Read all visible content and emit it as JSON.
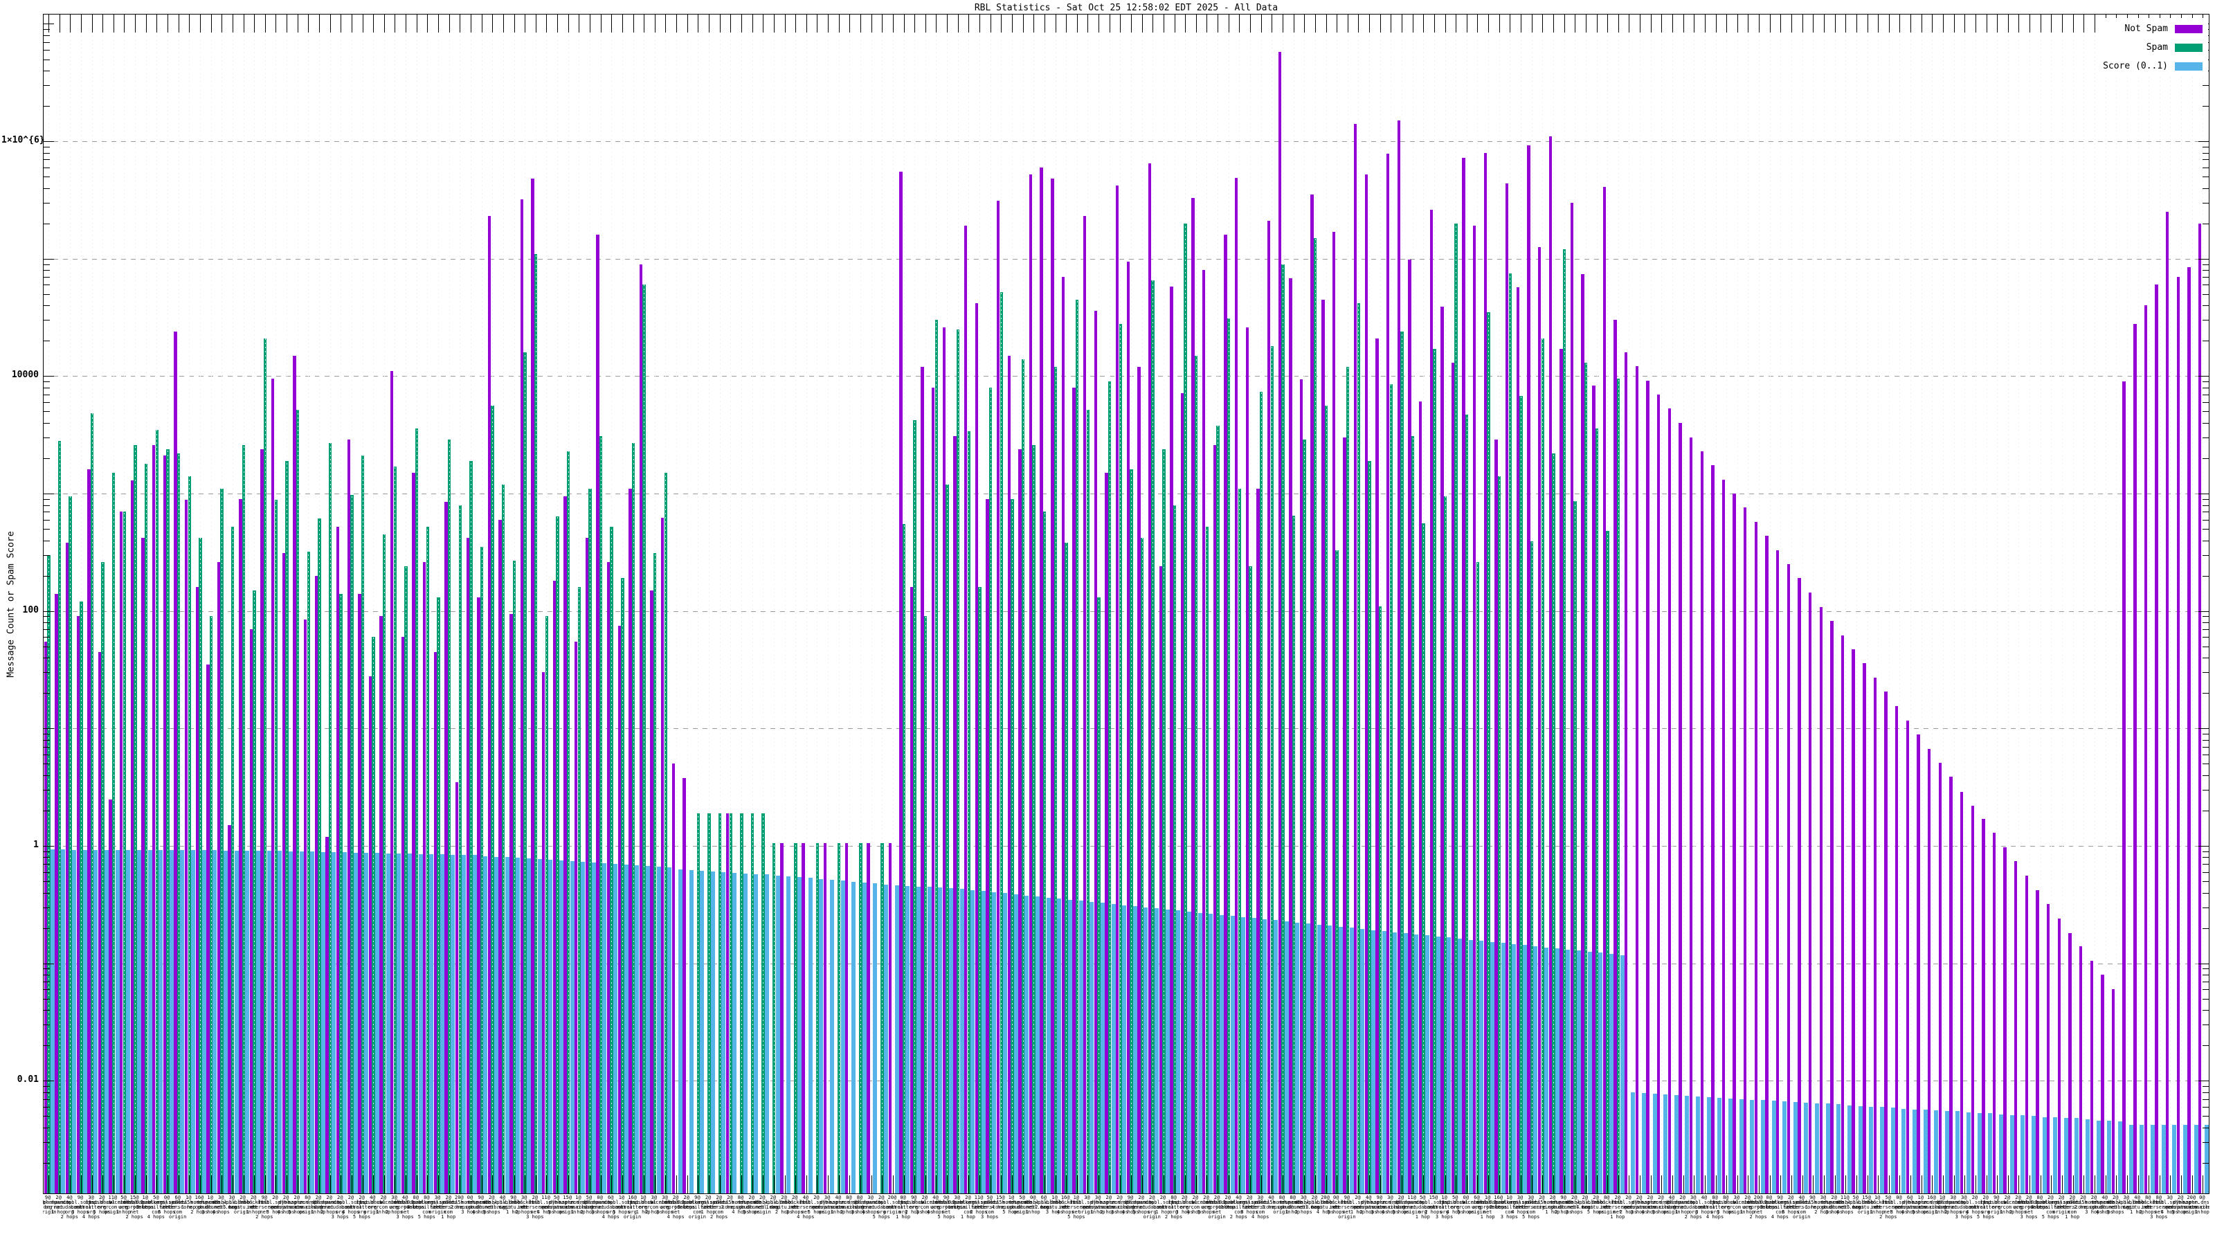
{
  "chart_data": {
    "type": "bar",
    "title": "RBL Statistics - Sat Oct 25 12:58:02 EDT 2025 - All Data",
    "xlabel": "",
    "ylabel": "Message Count or Spam Score",
    "y_scale": "log",
    "ylim": [
      0.0011,
      12000000
    ],
    "grid": true,
    "legend_position": "top-right",
    "y_ticks": [
      {
        "value": 1000000,
        "label": "1×10^{6}"
      },
      {
        "value": 10000,
        "label": "10000"
      },
      {
        "value": 100,
        "label": "100"
      },
      {
        "value": 1,
        "label": "1"
      },
      {
        "value": 0.01,
        "label": "0.01"
      }
    ],
    "series": [
      {
        "name": "Not Spam",
        "color": "#9400d3",
        "key": "notspam"
      },
      {
        "name": "Spam",
        "color": "#009e73",
        "key": "spam"
      },
      {
        "name": "Score (0..1)",
        "color": "#56b4e9",
        "key": "score"
      }
    ],
    "values": {
      "notspam": [
        55,
        140,
        380,
        90,
        1600,
        45,
        2.5,
        700,
        1300,
        420,
        2600,
        2100,
        24000,
        880,
        160,
        35,
        260,
        1.5,
        900,
        70,
        2400,
        9500,
        310,
        15000,
        85,
        200,
        1.2,
        520,
        2900,
        140,
        28,
        90,
        11000,
        60,
        1500,
        260,
        45,
        850,
        3.5,
        420,
        130,
        230000,
        600,
        95,
        320000,
        480000,
        30,
        180,
        950,
        55,
        420,
        160000,
        260,
        75,
        1100,
        90000,
        150,
        620,
        5,
        3.8,
        null,
        null,
        null,
        1.9,
        null,
        null,
        null,
        null,
        1.05,
        null,
        1.05,
        null,
        1.05,
        null,
        1.05,
        null,
        1.05,
        null,
        1.05,
        550000,
        160,
        12000,
        8000,
        26000,
        3100,
        190000,
        42000,
        900,
        310000,
        15000,
        2400,
        520000,
        600000,
        480000,
        70000,
        8000,
        230000,
        36000,
        1500,
        420000,
        95000,
        12000,
        650000,
        240,
        58000,
        7200,
        330000,
        80000,
        2600,
        160000,
        490000,
        26000,
        1100,
        210000,
        5800000,
        68000,
        9400,
        350000,
        45000,
        170000,
        3000,
        1400000,
        520000,
        21000,
        780000,
        1500000,
        98000,
        6100,
        260000,
        39000,
        13000,
        720000,
        190000,
        800000,
        2900,
        440000,
        57000,
        920000,
        125000,
        1100000,
        17000,
        300000,
        74000,
        8300,
        410000,
        30000,
        16000,
        12100,
        9200,
        7000,
        5300,
        4000,
        3000,
        2300,
        1750,
        1320,
        1000,
        760,
        575,
        435,
        330,
        250,
        190,
        143,
        108,
        82,
        62,
        47,
        36,
        27,
        20.5,
        15.5,
        11.7,
        8.9,
        6.7,
        5.1,
        3.9,
        2.9,
        2.2,
        1.7,
        1.3,
        0.97,
        0.74,
        0.56,
        0.42,
        0.32,
        0.24,
        0.18,
        0.14,
        0.105,
        0.08,
        0.06,
        9000,
        28000,
        40000,
        60000,
        250000,
        70000,
        85000,
        200000
      ],
      "spam": [
        300,
        2800,
        950,
        120,
        4800,
        260,
        1500,
        700,
        2600,
        1800,
        3500,
        2400,
        2200,
        1400,
        420,
        90,
        1100,
        520,
        2600,
        150,
        21000,
        880,
        1900,
        5200,
        320,
        610,
        2700,
        140,
        980,
        2100,
        60,
        450,
        1700,
        240,
        3600,
        520,
        130,
        2900,
        800,
        1900,
        350,
        5600,
        1200,
        270,
        16000,
        110000,
        90,
        640,
        2300,
        160,
        1100,
        3100,
        520,
        190,
        2700,
        60000,
        310,
        1500,
        null,
        null,
        1.9,
        1.9,
        1.9,
        1.9,
        1.9,
        1.9,
        1.9,
        1.05,
        null,
        1.05,
        null,
        1.05,
        null,
        1.05,
        null,
        1.05,
        null,
        1.05,
        null,
        550,
        4200,
        90,
        30000,
        1200,
        25000,
        3400,
        160,
        8000,
        52000,
        900,
        14000,
        2600,
        700,
        12000,
        380,
        45000,
        5200,
        130,
        9000,
        28000,
        1600,
        420,
        65000,
        2400,
        800,
        200000,
        15000,
        520,
        3800,
        31000,
        1100,
        240,
        7400,
        18000,
        90000,
        650,
        2900,
        150000,
        5600,
        330,
        12000,
        42000,
        1900,
        110,
        8600,
        24000,
        3100,
        560,
        17000,
        950,
        200000,
        4700,
        260,
        35000,
        1400,
        75000,
        6800,
        390,
        21000,
        2200,
        120000,
        860,
        13000,
        3600,
        480,
        9500,
        null,
        null,
        null,
        null,
        null,
        null,
        null,
        null,
        null,
        null,
        null,
        null,
        null,
        null,
        null,
        null,
        null,
        null,
        null,
        null,
        null,
        null,
        null,
        null,
        null,
        null,
        null,
        null,
        null,
        null,
        null,
        null,
        null,
        null,
        null,
        null,
        null,
        null,
        null,
        null,
        null,
        null,
        null,
        null,
        null,
        null,
        null,
        null,
        null,
        null,
        null,
        null,
        null,
        null
      ],
      "score": [
        0.93,
        0.929,
        0.928,
        0.927,
        0.927,
        0.926,
        0.925,
        0.924,
        0.923,
        0.922,
        0.921,
        0.92,
        0.92,
        0.919,
        0.918,
        0.917,
        0.916,
        0.915,
        0.914,
        0.913,
        0.91,
        0.906,
        0.902,
        0.898,
        0.894,
        0.89,
        0.886,
        0.882,
        0.878,
        0.874,
        0.87,
        0.866,
        0.862,
        0.858,
        0.854,
        0.85,
        0.846,
        0.842,
        0.838,
        0.834,
        0.82,
        0.81,
        0.8,
        0.79,
        0.781,
        0.771,
        0.762,
        0.752,
        0.743,
        0.733,
        0.724,
        0.714,
        0.705,
        0.695,
        0.686,
        0.676,
        0.667,
        0.657,
        0.63,
        0.622,
        0.615,
        0.607,
        0.6,
        0.592,
        0.585,
        0.577,
        0.57,
        0.56,
        0.551,
        0.542,
        0.533,
        0.524,
        0.515,
        0.506,
        0.497,
        0.488,
        0.479,
        0.47,
        0.461,
        0.455,
        0.452,
        0.449,
        0.446,
        0.44,
        0.431,
        0.422,
        0.413,
        0.404,
        0.396,
        0.387,
        0.379,
        0.371,
        0.363,
        0.356,
        0.348,
        0.341,
        0.334,
        0.327,
        0.32,
        0.313,
        0.307,
        0.3,
        0.294,
        0.288,
        0.282,
        0.276,
        0.27,
        0.264,
        0.259,
        0.253,
        0.248,
        0.243,
        0.238,
        0.233,
        0.228,
        0.223,
        0.218,
        0.214,
        0.209,
        0.205,
        0.201,
        0.196,
        0.192,
        0.188,
        0.184,
        0.18,
        0.177,
        0.173,
        0.169,
        0.166,
        0.162,
        0.159,
        0.156,
        0.152,
        0.149,
        0.146,
        0.143,
        0.14,
        0.137,
        0.134,
        0.131,
        0.129,
        0.126,
        0.123,
        0.121,
        0.118,
        0.008,
        0.0079,
        0.0078,
        0.0077,
        0.0076,
        0.0075,
        0.0074,
        0.0073,
        0.0072,
        0.0071,
        0.007,
        0.0069,
        0.0069,
        0.0068,
        0.0067,
        0.0066,
        0.0065,
        0.0064,
        0.0064,
        0.0063,
        0.0062,
        0.0061,
        0.006,
        0.006,
        0.0059,
        0.0058,
        0.0057,
        0.0057,
        0.0056,
        0.0055,
        0.0055,
        0.0054,
        0.0053,
        0.0053,
        0.0052,
        0.0051,
        0.0051,
        0.005,
        0.0049,
        0.0049,
        0.0048,
        0.0048,
        0.0047,
        0.0046,
        0.0046,
        0.0045,
        0.0042,
        0.0042,
        0.0042,
        0.0042,
        0.0042,
        0.0042,
        0.0042,
        0.0042
      ]
    },
    "x_labels": {
      "counts_cycle": [
        9,
        2,
        4,
        9,
        3,
        2,
        11,
        5,
        15,
        1,
        5,
        0,
        6,
        1,
        16,
        1,
        3,
        3,
        2,
        2,
        9,
        2,
        2,
        2,
        8,
        2,
        2,
        2,
        2,
        2,
        4,
        2,
        3,
        4,
        8,
        8,
        3,
        2,
        20,
        0
      ],
      "rbl_names": [
        "zen.spamhaus.org",
        "bl.spamcop.net",
        "b.barracudacentral.org",
        "dnsbl.sorbs.net",
        "ips.backscatterer.org",
        "list.dnswl.org",
        "psbl.surriel.com",
        "cbl.abuseat.org",
        "dnsbl-1.uceprotect.net",
        "bl.0spam.org",
        "hostkarma.junkemailfilter.com",
        "bl.mailspike.net",
        "score.senderscore.com",
        "all.s5h.net",
        "bl.nordspam.com",
        "truncate.gbudb.net",
        "dnsbl.dronebl.org",
        "db.wpbl.info",
        "ix.dnsbl.manitu.net",
        "bl.blocklist.de",
        "rbl.interserver.net",
        "dnsbl.spfbl.net",
        "dyna.spamrats.com",
        "noptr.spamrats.com",
        "spam.dnsbl.anonmails.de"
      ],
      "hop_cycle": [
        "origin",
        "1 hop",
        "2 hops",
        "3 hops",
        "4 hops",
        "5 hops"
      ]
    }
  }
}
